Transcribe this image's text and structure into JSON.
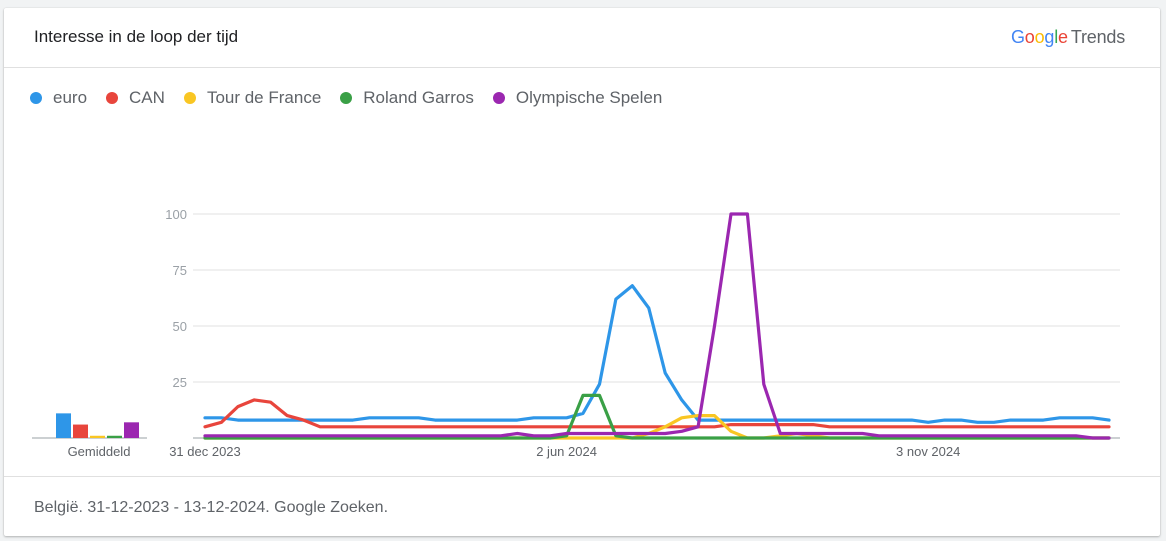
{
  "header": {
    "title": "Interesse in de loop der tijd",
    "logo_google": "Google",
    "logo_trends": "Trends"
  },
  "colors": {
    "euro": "#2e96e8",
    "CAN": "#e8453c",
    "Tour de France": "#f9c623",
    "Roland Garros": "#3aa046",
    "Olympische Spelen": "#9b27b0"
  },
  "averages": {
    "label": "Gemiddeld",
    "values": [
      {
        "name": "euro",
        "value": 11
      },
      {
        "name": "CAN",
        "value": 6
      },
      {
        "name": "Tour de France",
        "value": 1
      },
      {
        "name": "Roland Garros",
        "value": 1
      },
      {
        "name": "Olympische Spelen",
        "value": 7
      }
    ]
  },
  "chart_data": {
    "type": "line",
    "title": "Interesse in de loop der tijd",
    "x_tick_labels": [
      "31 dec 2023",
      "2 jun 2024",
      "3 nov 2024"
    ],
    "x_tick_positions": [
      0,
      22,
      44
    ],
    "y_ticks": [
      25,
      50,
      75,
      100
    ],
    "ylim": [
      0,
      100
    ],
    "grid": true,
    "legend_position": "top-left",
    "series": [
      {
        "name": "euro",
        "values": [
          9,
          9,
          8,
          8,
          8,
          8,
          8,
          8,
          8,
          8,
          9,
          9,
          9,
          9,
          8,
          8,
          8,
          8,
          8,
          8,
          9,
          9,
          9,
          11,
          24,
          62,
          68,
          58,
          29,
          17,
          8,
          8,
          8,
          8,
          8,
          8,
          8,
          8,
          8,
          8,
          8,
          8,
          8,
          8,
          7,
          8,
          8,
          7,
          7,
          8,
          8,
          8,
          9,
          9,
          9,
          8
        ]
      },
      {
        "name": "CAN",
        "values": [
          5,
          7,
          14,
          17,
          16,
          10,
          8,
          5,
          5,
          5,
          5,
          5,
          5,
          5,
          5,
          5,
          5,
          5,
          5,
          5,
          5,
          5,
          5,
          5,
          5,
          5,
          5,
          5,
          5,
          5,
          5,
          5,
          6,
          6,
          6,
          6,
          6,
          6,
          5,
          5,
          5,
          5,
          5,
          5,
          5,
          5,
          5,
          5,
          5,
          5,
          5,
          5,
          5,
          5,
          5,
          5
        ]
      },
      {
        "name": "Tour de France",
        "values": [
          0,
          0,
          0,
          0,
          0,
          0,
          0,
          0,
          0,
          0,
          0,
          0,
          0,
          0,
          0,
          0,
          0,
          0,
          0,
          0,
          0,
          0,
          0,
          0,
          0,
          0,
          0,
          2,
          5,
          9,
          10,
          10,
          3,
          0,
          0,
          1,
          2,
          1,
          0,
          0,
          0,
          0,
          0,
          0,
          0,
          0,
          0,
          0,
          0,
          0,
          0,
          0,
          0,
          0,
          0,
          0
        ]
      },
      {
        "name": "Roland Garros",
        "values": [
          0,
          0,
          0,
          0,
          0,
          0,
          0,
          0,
          0,
          0,
          0,
          0,
          0,
          0,
          0,
          0,
          0,
          0,
          0,
          0,
          0,
          0,
          1,
          19,
          19,
          1,
          0,
          0,
          0,
          0,
          0,
          0,
          0,
          0,
          0,
          0,
          0,
          0,
          0,
          0,
          0,
          0,
          0,
          0,
          0,
          0,
          0,
          0,
          0,
          0,
          0,
          0,
          0,
          0,
          0,
          0
        ]
      },
      {
        "name": "Olympische Spelen",
        "values": [
          1,
          1,
          1,
          1,
          1,
          1,
          1,
          1,
          1,
          1,
          1,
          1,
          1,
          1,
          1,
          1,
          1,
          1,
          1,
          2,
          1,
          1,
          2,
          2,
          2,
          2,
          2,
          2,
          2,
          3,
          5,
          50,
          100,
          100,
          24,
          2,
          2,
          2,
          2,
          2,
          2,
          1,
          1,
          1,
          1,
          1,
          1,
          1,
          1,
          1,
          1,
          1,
          1,
          1,
          0,
          0
        ]
      }
    ]
  },
  "footer": {
    "note": "België. 31-12-2023 - 13-12-2024. Google Zoeken."
  }
}
